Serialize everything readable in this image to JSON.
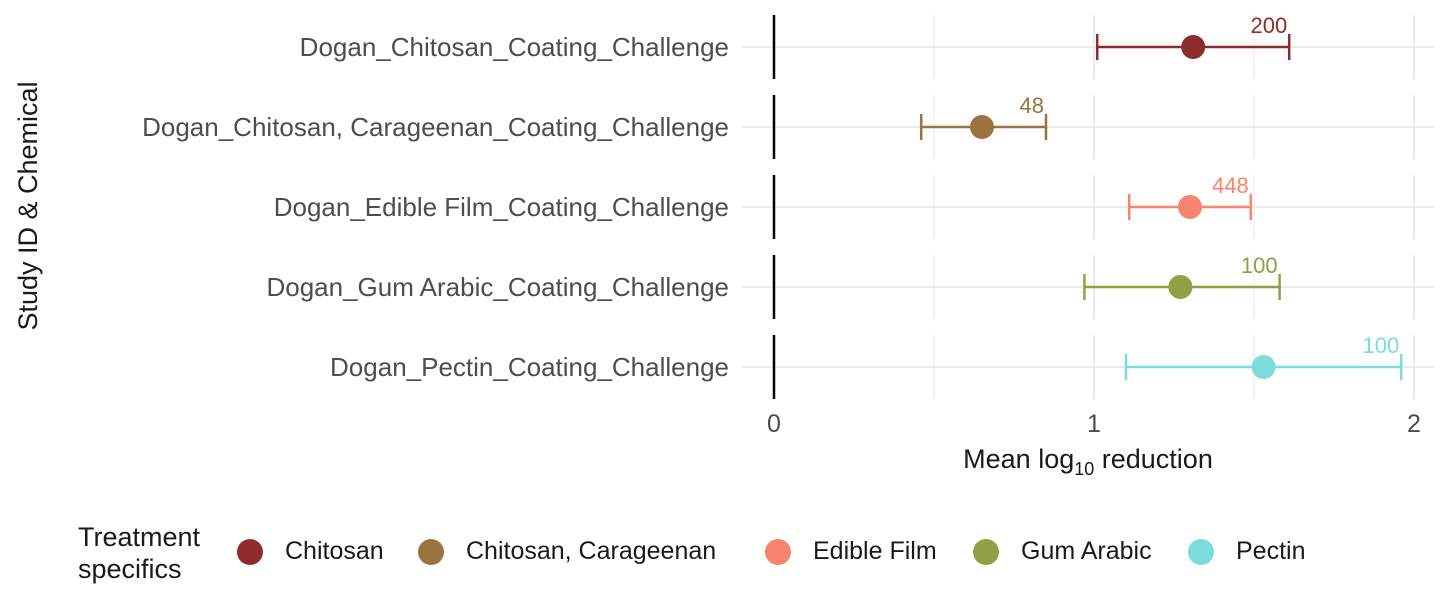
{
  "chart_data": {
    "type": "forest",
    "ylabel": "Study ID & Chemical",
    "xlabel_prefix": "Mean log",
    "xlabel_sub": "10",
    "xlabel_suffix": " reduction",
    "xlim": [
      0,
      2
    ],
    "xticks": [
      "0",
      "1",
      "2"
    ],
    "grid": true,
    "legend_position": "bottom",
    "legend_title": [
      "Treatment",
      "specifics"
    ],
    "rows": [
      {
        "label": "Dogan_Chitosan_Coating_Challenge",
        "mean": 1.31,
        "lower": 1.01,
        "upper": 1.61,
        "n": "200",
        "group": "Chitosan"
      },
      {
        "label": "Dogan_Chitosan, Carageenan_Coating_Challenge",
        "mean": 0.65,
        "lower": 0.46,
        "upper": 0.85,
        "n": "48",
        "group": "Chitosan, Carageenan"
      },
      {
        "label": "Dogan_Edible Film_Coating_Challenge",
        "mean": 1.3,
        "lower": 1.11,
        "upper": 1.49,
        "n": "448",
        "group": "Edible Film"
      },
      {
        "label": "Dogan_Gum Arabic_Coating_Challenge",
        "mean": 1.27,
        "lower": 0.97,
        "upper": 1.58,
        "n": "100",
        "group": "Gum Arabic"
      },
      {
        "label": "Dogan_Pectin_Coating_Challenge",
        "mean": 1.53,
        "lower": 1.1,
        "upper": 1.96,
        "n": "100",
        "group": "Pectin"
      }
    ],
    "legend": [
      {
        "name": "Chitosan",
        "color": "#8e2c2c"
      },
      {
        "name": "Chitosan, Carageenan",
        "color": "#9a7340"
      },
      {
        "name": "Edible Film",
        "color": "#f8836f"
      },
      {
        "name": "Gum Arabic",
        "color": "#8fa045"
      },
      {
        "name": "Pectin",
        "color": "#7bdcdb"
      }
    ]
  }
}
